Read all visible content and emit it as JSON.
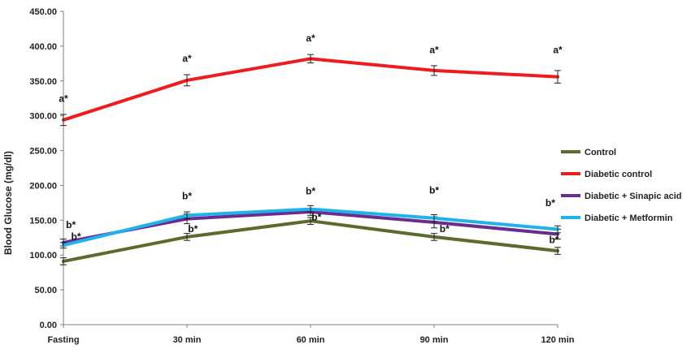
{
  "chart_data": {
    "type": "line",
    "title": "",
    "xlabel": "",
    "ylabel": "Blood Glucose (mg/dl)",
    "categories": [
      "Fasting",
      "30 min",
      "60 min",
      "90 min",
      "120 min"
    ],
    "ylim": [
      0,
      450
    ],
    "yticks": [
      "0.00",
      "50.00",
      "100.00",
      "150.00",
      "200.00",
      "250.00",
      "300.00",
      "350.00",
      "400.00",
      "450.00"
    ],
    "grid": false,
    "legend_position": "right",
    "series": [
      {
        "name": "Control",
        "color": "#5a6b2c",
        "values": [
          91,
          126,
          149,
          126,
          106
        ],
        "errors": [
          5,
          5,
          5,
          5,
          5
        ]
      },
      {
        "name": "Diabetic control",
        "color": "#ee1c1c",
        "values": [
          294,
          351,
          382,
          365,
          356
        ],
        "errors": [
          8,
          8,
          6,
          7,
          9
        ]
      },
      {
        "name": "Diabetic + Sinapic acid",
        "color": "#6a2c8e",
        "values": [
          118,
          152,
          162,
          147,
          130
        ],
        "errors": [
          5,
          7,
          5,
          8,
          7
        ]
      },
      {
        "name": "Diabetic + Metformin",
        "color": "#1fb3ea",
        "values": [
          114,
          157,
          166,
          153,
          137
        ],
        "errors": [
          4,
          5,
          5,
          5,
          5
        ]
      }
    ],
    "annotations": [
      {
        "text": "a*",
        "category": "Fasting",
        "y": 320
      },
      {
        "text": "a*",
        "category": "30 min",
        "y": 378
      },
      {
        "text": "a*",
        "category": "60 min",
        "y": 407
      },
      {
        "text": "a*",
        "category": "90 min",
        "y": 390
      },
      {
        "text": "a*",
        "category": "120 min",
        "y": 390
      },
      {
        "text": "b*",
        "category": "Fasting",
        "y": 139,
        "dx": 0.1
      },
      {
        "text": "b*",
        "category": "Fasting",
        "y": 122,
        "dx": 0.17
      },
      {
        "text": "b*",
        "category": "30 min",
        "y": 180
      },
      {
        "text": "b*",
        "category": "30 min",
        "y": 133,
        "dx": 0.08
      },
      {
        "text": "b*",
        "category": "60 min",
        "y": 187
      },
      {
        "text": "b*",
        "category": "60 min",
        "y": 150,
        "dx": 0.08
      },
      {
        "text": "b*",
        "category": "90 min",
        "y": 188
      },
      {
        "text": "b*",
        "category": "90 min",
        "y": 133,
        "dx": 0.14
      },
      {
        "text": "b*",
        "category": "120 min",
        "y": 170,
        "dx": -0.1
      },
      {
        "text": "b*",
        "category": "120 min",
        "y": 117,
        "dx": -0.05
      }
    ]
  }
}
